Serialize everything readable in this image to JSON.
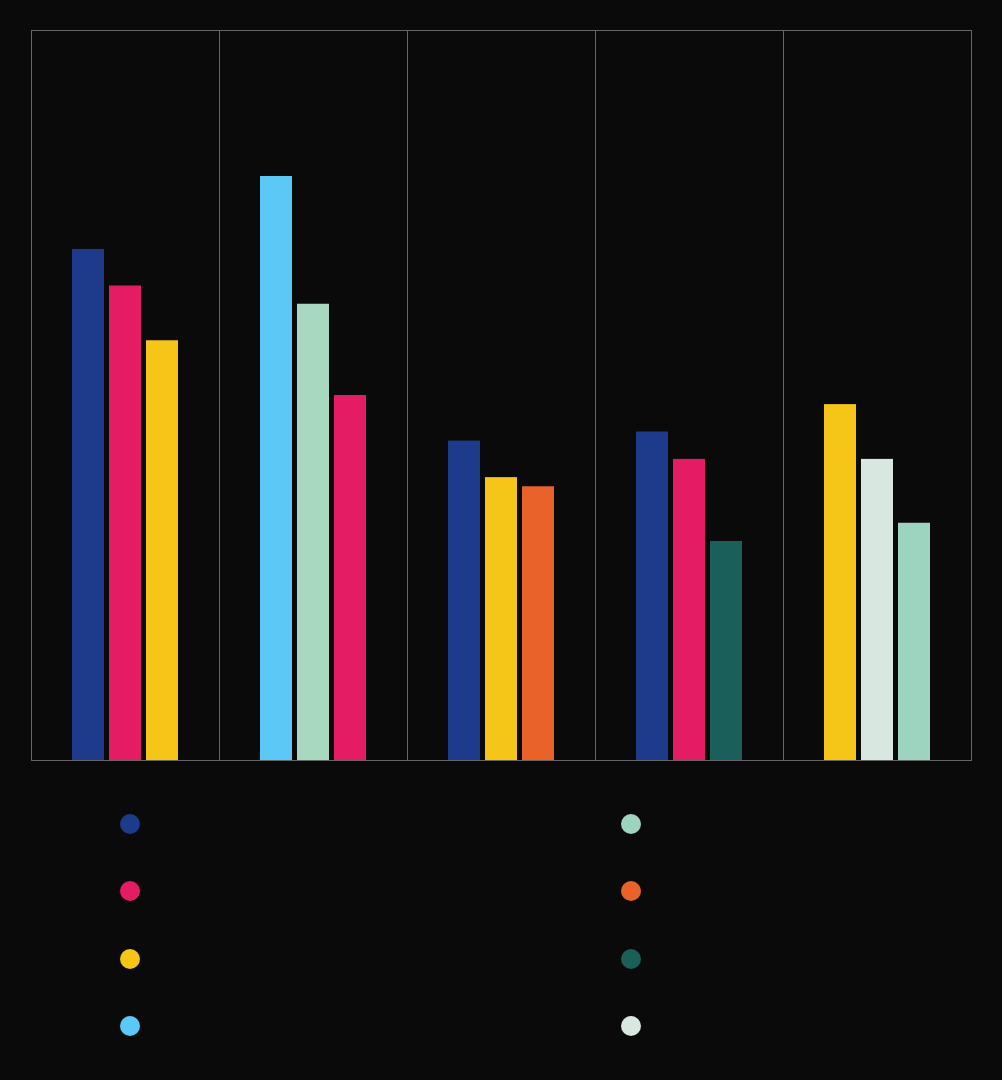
{
  "chart_data": {
    "type": "bar",
    "categories": [
      null,
      null,
      null,
      null,
      null
    ],
    "series": [
      {
        "values": [
          56,
          64,
          35,
          36,
          39
        ],
        "colors": [
          "#1e3a8a",
          "#5bc8f5",
          "#1e3a8a",
          "#1e3a8a",
          "#f5c518"
        ]
      },
      {
        "values": [
          52,
          50,
          31,
          33,
          33
        ],
        "colors": [
          "#e31c64",
          "#a8d8c0",
          "#f5c518",
          "#e31c64",
          "#d8e8e0"
        ]
      },
      {
        "values": [
          46,
          40,
          30,
          24,
          26
        ],
        "colors": [
          "#f5c518",
          "#e31c64",
          "#e8622a",
          "#1a5f5a",
          "#9dd4c0"
        ]
      }
    ],
    "ylim": [
      0,
      80
    ],
    "yticks": [],
    "grid": false,
    "tick_labels": false,
    "legend": "bottom",
    "legend_colors": [
      "#1e3a8a",
      "#e31c64",
      "#f5c518",
      "#5bc8f5",
      "#9dd4c0",
      "#e8622a",
      "#1a5f5a",
      "#d8e8e0"
    ]
  }
}
